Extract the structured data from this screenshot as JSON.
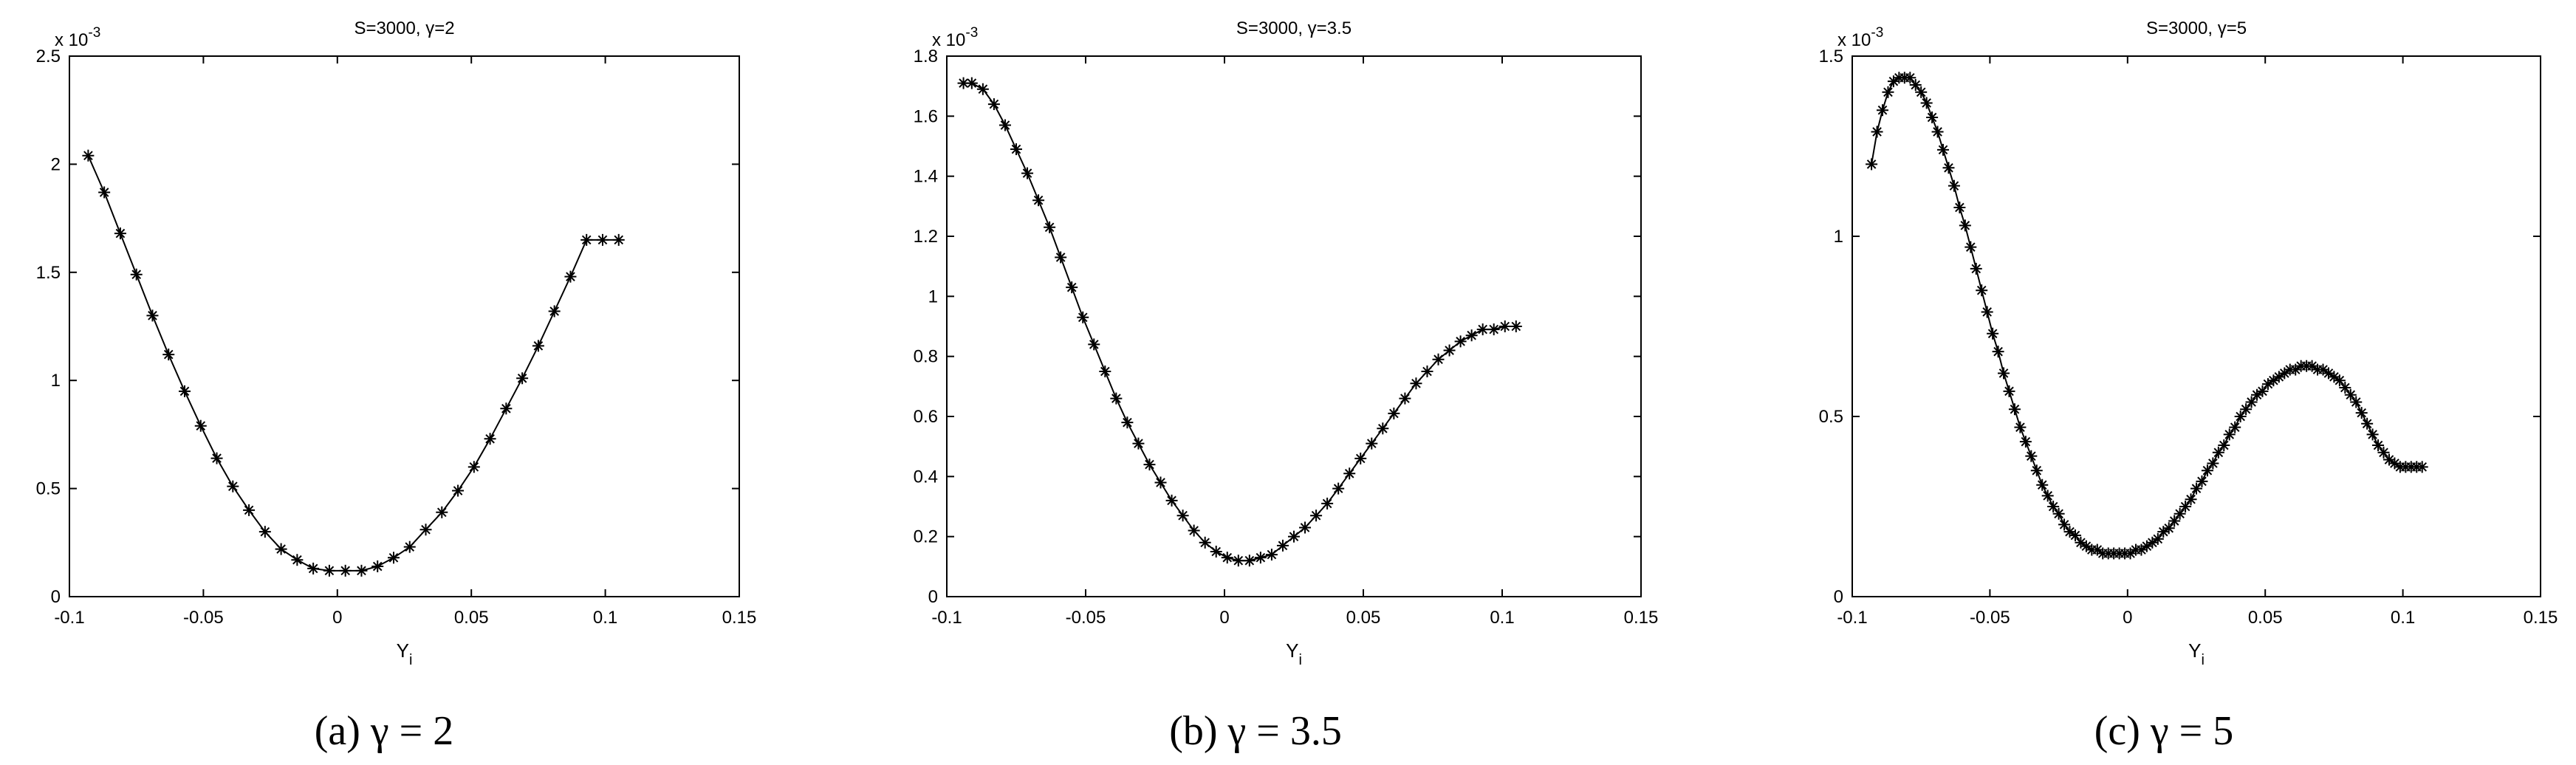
{
  "chart_data": [
    {
      "type": "line",
      "title": "S=3000,   γ=2",
      "xlabel": "Y",
      "xlabel_sub": "i",
      "y_multiplier": "x 10",
      "y_multiplier_exp": "-3",
      "xlim": [
        -0.1,
        0.15
      ],
      "ylim": [
        0,
        2.5
      ],
      "x_ticks": [
        "-0.1",
        "-0.05",
        "0",
        "0.05",
        "0.1",
        "0.15"
      ],
      "y_ticks": [
        "0",
        "0.5",
        "1",
        "1.5",
        "2",
        "2.5"
      ],
      "marker": "asterisk",
      "caption": "(a)  γ = 2",
      "x": [
        -0.093,
        -0.087,
        -0.081,
        -0.075,
        -0.069,
        -0.063,
        -0.057,
        -0.051,
        -0.045,
        -0.039,
        -0.033,
        -0.027,
        -0.021,
        -0.015,
        -0.009,
        -0.003,
        0.003,
        0.009,
        0.015,
        0.021,
        0.027,
        0.033,
        0.039,
        0.045,
        0.051,
        0.057,
        0.063,
        0.069,
        0.075,
        0.081,
        0.087,
        0.093,
        0.099,
        0.105
      ],
      "y": [
        2.04,
        1.87,
        1.68,
        1.49,
        1.3,
        1.12,
        0.95,
        0.79,
        0.64,
        0.51,
        0.4,
        0.3,
        0.22,
        0.17,
        0.13,
        0.12,
        0.12,
        0.12,
        0.14,
        0.18,
        0.23,
        0.31,
        0.39,
        0.49,
        0.6,
        0.73,
        0.87,
        1.01,
        1.16,
        1.32,
        1.48,
        1.65,
        1.65,
        1.65
      ]
    },
    {
      "type": "line",
      "title": "S=3000,   γ=3.5",
      "xlabel": "Y",
      "xlabel_sub": "i",
      "y_multiplier": "x 10",
      "y_multiplier_exp": "-3",
      "xlim": [
        -0.1,
        0.15
      ],
      "ylim": [
        0,
        1.8
      ],
      "x_ticks": [
        "-0.1",
        "-0.05",
        "0",
        "0.05",
        "0.1",
        "0.15"
      ],
      "y_ticks": [
        "0",
        "0.2",
        "0.4",
        "0.6",
        "0.8",
        "1",
        "1.2",
        "1.4",
        "1.6",
        "1.8"
      ],
      "marker": "asterisk",
      "caption": "(b)  γ = 3.5",
      "x": [
        -0.094,
        -0.091,
        -0.087,
        -0.083,
        -0.079,
        -0.075,
        -0.071,
        -0.067,
        -0.063,
        -0.059,
        -0.055,
        -0.051,
        -0.047,
        -0.043,
        -0.039,
        -0.035,
        -0.031,
        -0.027,
        -0.023,
        -0.019,
        -0.015,
        -0.011,
        -0.007,
        -0.003,
        0.001,
        0.005,
        0.009,
        0.013,
        0.017,
        0.021,
        0.025,
        0.029,
        0.033,
        0.037,
        0.041,
        0.045,
        0.049,
        0.053,
        0.057,
        0.061,
        0.065,
        0.069,
        0.073,
        0.077,
        0.081,
        0.085,
        0.089,
        0.093,
        0.097,
        0.101,
        0.105
      ],
      "y": [
        1.71,
        1.71,
        1.69,
        1.64,
        1.57,
        1.49,
        1.41,
        1.32,
        1.23,
        1.13,
        1.03,
        0.93,
        0.84,
        0.75,
        0.66,
        0.58,
        0.51,
        0.44,
        0.38,
        0.32,
        0.27,
        0.22,
        0.18,
        0.15,
        0.13,
        0.12,
        0.12,
        0.13,
        0.14,
        0.17,
        0.2,
        0.23,
        0.27,
        0.31,
        0.36,
        0.41,
        0.46,
        0.51,
        0.56,
        0.61,
        0.66,
        0.71,
        0.75,
        0.79,
        0.82,
        0.85,
        0.87,
        0.89,
        0.89,
        0.9,
        0.9
      ]
    },
    {
      "type": "line",
      "title": "S=3000,   γ=5",
      "xlabel": "Y",
      "xlabel_sub": "i",
      "y_multiplier": "x 10",
      "y_multiplier_exp": "-3",
      "xlim": [
        -0.1,
        0.15
      ],
      "ylim": [
        0,
        1.5
      ],
      "x_ticks": [
        "-0.1",
        "-0.05",
        "0",
        "0.05",
        "0.1",
        "0.15"
      ],
      "y_ticks": [
        "0",
        "0.5",
        "1",
        "1.5"
      ],
      "marker": "asterisk",
      "caption": "(c)  γ = 5",
      "x": [
        -0.093,
        -0.091,
        -0.089,
        -0.087,
        -0.085,
        -0.083,
        -0.081,
        -0.079,
        -0.077,
        -0.075,
        -0.073,
        -0.071,
        -0.069,
        -0.067,
        -0.065,
        -0.063,
        -0.061,
        -0.059,
        -0.057,
        -0.055,
        -0.053,
        -0.051,
        -0.049,
        -0.047,
        -0.045,
        -0.043,
        -0.041,
        -0.039,
        -0.037,
        -0.035,
        -0.033,
        -0.031,
        -0.029,
        -0.027,
        -0.025,
        -0.023,
        -0.021,
        -0.019,
        -0.017,
        -0.015,
        -0.013,
        -0.011,
        -0.009,
        -0.007,
        -0.005,
        -0.003,
        -0.001,
        0.001,
        0.003,
        0.005,
        0.007,
        0.009,
        0.011,
        0.013,
        0.015,
        0.017,
        0.019,
        0.021,
        0.023,
        0.025,
        0.027,
        0.029,
        0.031,
        0.033,
        0.035,
        0.037,
        0.039,
        0.041,
        0.043,
        0.045,
        0.047,
        0.049,
        0.051,
        0.053,
        0.055,
        0.057,
        0.059,
        0.061,
        0.063,
        0.065,
        0.067,
        0.069,
        0.071,
        0.073,
        0.075,
        0.077,
        0.079,
        0.081,
        0.083,
        0.085,
        0.087,
        0.089,
        0.091,
        0.093,
        0.095,
        0.097,
        0.099,
        0.101,
        0.103,
        0.105,
        0.107
      ],
      "y": [
        1.2,
        1.29,
        1.35,
        1.4,
        1.43,
        1.44,
        1.44,
        1.44,
        1.42,
        1.4,
        1.37,
        1.33,
        1.29,
        1.24,
        1.19,
        1.14,
        1.08,
        1.03,
        0.97,
        0.91,
        0.85,
        0.79,
        0.73,
        0.68,
        0.62,
        0.57,
        0.52,
        0.47,
        0.43,
        0.39,
        0.35,
        0.31,
        0.28,
        0.25,
        0.23,
        0.2,
        0.18,
        0.17,
        0.15,
        0.14,
        0.13,
        0.13,
        0.12,
        0.12,
        0.12,
        0.12,
        0.12,
        0.12,
        0.13,
        0.13,
        0.14,
        0.15,
        0.16,
        0.18,
        0.19,
        0.21,
        0.23,
        0.25,
        0.27,
        0.3,
        0.32,
        0.35,
        0.37,
        0.4,
        0.42,
        0.45,
        0.47,
        0.5,
        0.52,
        0.54,
        0.56,
        0.57,
        0.59,
        0.6,
        0.61,
        0.62,
        0.63,
        0.63,
        0.64,
        0.64,
        0.64,
        0.63,
        0.63,
        0.62,
        0.61,
        0.6,
        0.58,
        0.56,
        0.54,
        0.51,
        0.48,
        0.45,
        0.42,
        0.4,
        0.38,
        0.37,
        0.36,
        0.36,
        0.36,
        0.36,
        0.36
      ]
    }
  ]
}
